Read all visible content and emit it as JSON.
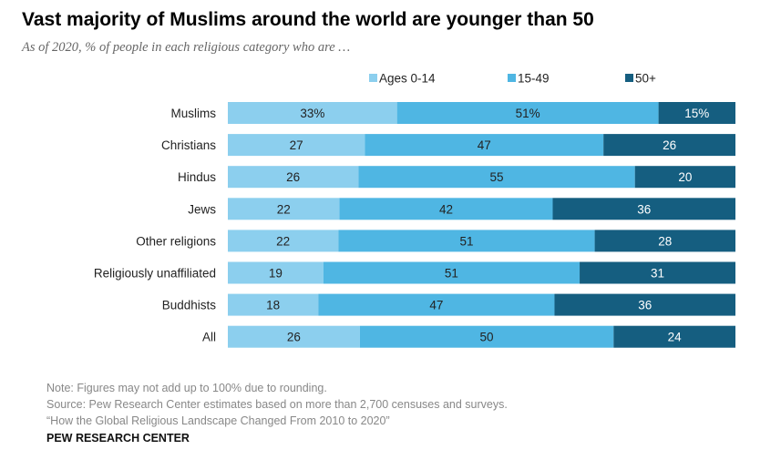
{
  "colors": {
    "ages_0_14": "#8ccfee",
    "ages_15_49": "#4fb6e3",
    "ages_50_plus": "#155e80",
    "label_dark": "#222222",
    "label_light": "#ffffff"
  },
  "chart_data": {
    "type": "bar",
    "orientation": "horizontal",
    "stacked": true,
    "title": "Vast majority of Muslims around the world are younger than 50",
    "subtitle": "As of 2020, % of people in each religious category who are …",
    "legend_position": "top",
    "categories": [
      "Muslims",
      "Christians",
      "Hindus",
      "Jews",
      "Other religions",
      "Religiously unaffiliated",
      "Buddhists",
      "All"
    ],
    "series": [
      {
        "name": "Ages 0-14",
        "values": [
          33,
          27,
          26,
          22,
          22,
          19,
          18,
          26
        ],
        "labels": [
          "33%",
          "27",
          "26",
          "22",
          "22",
          "19",
          "18",
          "26"
        ]
      },
      {
        "name": "15-49",
        "values": [
          51,
          47,
          55,
          42,
          51,
          51,
          47,
          50
        ],
        "labels": [
          "51%",
          "47",
          "55",
          "42",
          "51",
          "51",
          "47",
          "50"
        ]
      },
      {
        "name": "50+",
        "values": [
          15,
          26,
          20,
          36,
          28,
          31,
          36,
          24
        ],
        "labels": [
          "15%",
          "26",
          "20",
          "36",
          "28",
          "31",
          "36",
          "24"
        ]
      }
    ]
  },
  "footer": {
    "note": "Note: Figures may not add up to 100% due to rounding.",
    "source": "Source: Pew Research Center estimates based on more than 2,700 censuses and surveys.",
    "report": "“How the Global Religious Landscape Changed From 2010 to 2020”",
    "brand": "PEW RESEARCH CENTER"
  }
}
